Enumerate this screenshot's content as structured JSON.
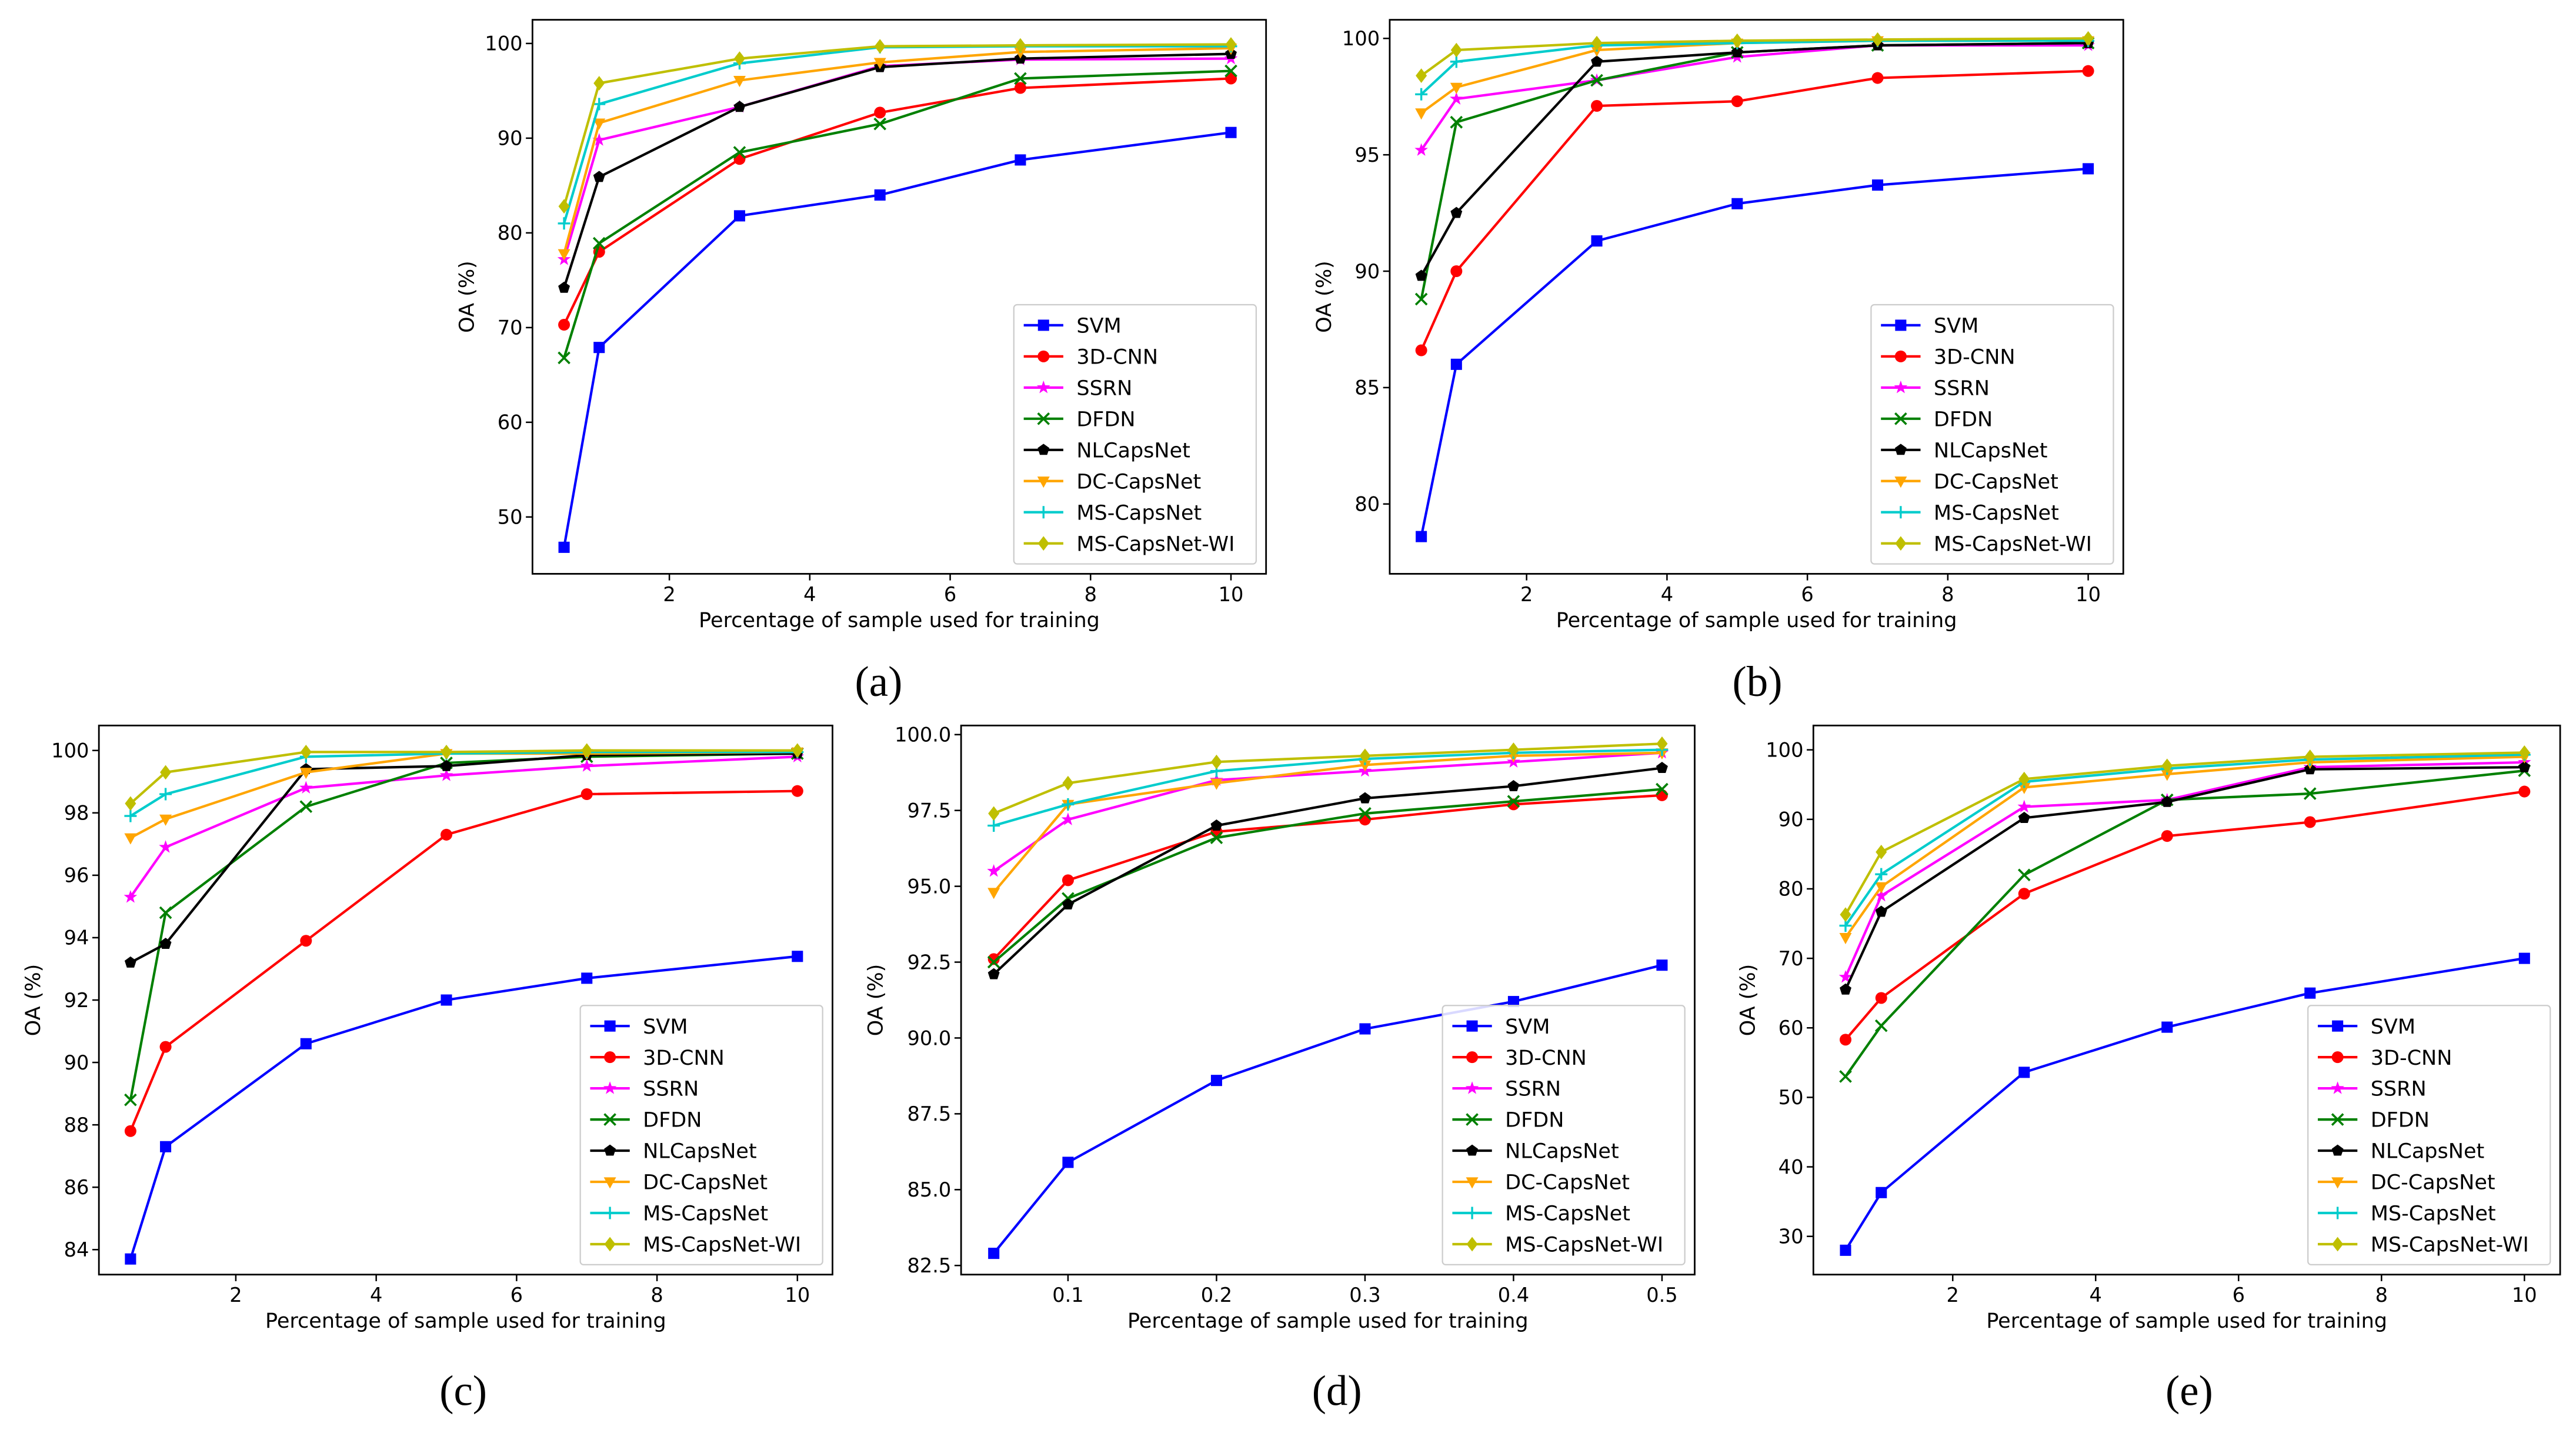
{
  "figure": {
    "series_names": [
      "SVM",
      "3D-CNN",
      "SSRN",
      "DFDN",
      "NLCapsNet",
      "DC-CapsNet",
      "MS-CapsNet",
      "MS-CapsNet-WI"
    ],
    "colors": [
      "#0000ff",
      "#ff0000",
      "#ff00ff",
      "#008000",
      "#000000",
      "#ffa500",
      "#00cccc",
      "#bfbf00"
    ],
    "markers": [
      "square",
      "circle",
      "star",
      "x",
      "pentagon",
      "triangle-down",
      "plus",
      "diamond"
    ]
  },
  "chart_data": [
    {
      "type": "line",
      "panel_label": "(a)",
      "xlabel": "Percentage of sample used for training",
      "ylabel": "OA (%)",
      "xlim": [
        0.05,
        10.5
      ],
      "ylim": [
        44,
        102.5
      ],
      "xticks": [
        2,
        4,
        6,
        8,
        10
      ],
      "yticks": [
        50,
        60,
        70,
        80,
        90,
        100
      ],
      "xtick_labels": [
        "2",
        "4",
        "6",
        "8",
        "10"
      ],
      "ytick_labels": [
        "50",
        "60",
        "70",
        "80",
        "90",
        "100"
      ],
      "legend": "lower-right",
      "x": [
        0.5,
        1,
        3,
        5,
        7,
        10
      ],
      "series": [
        {
          "name": "SVM",
          "values": [
            46.8,
            67.9,
            81.8,
            84.0,
            87.7,
            90.6
          ]
        },
        {
          "name": "3D-CNN",
          "values": [
            70.3,
            78.0,
            87.8,
            92.7,
            95.3,
            96.3
          ]
        },
        {
          "name": "SSRN",
          "values": [
            77.2,
            89.8,
            93.3,
            97.6,
            98.3,
            98.4
          ]
        },
        {
          "name": "DFDN",
          "values": [
            66.8,
            78.9,
            88.5,
            91.5,
            96.3,
            97.1
          ]
        },
        {
          "name": "NLCapsNet",
          "values": [
            74.2,
            85.9,
            93.3,
            97.5,
            98.4,
            98.9
          ]
        },
        {
          "name": "DC-CapsNet",
          "values": [
            77.8,
            91.6,
            96.1,
            98.0,
            99.1,
            99.5
          ]
        },
        {
          "name": "MS-CapsNet",
          "values": [
            81.0,
            93.6,
            97.9,
            99.6,
            99.7,
            99.7
          ]
        },
        {
          "name": "MS-CapsNet-WI",
          "values": [
            82.8,
            95.8,
            98.4,
            99.7,
            99.8,
            99.9
          ]
        }
      ]
    },
    {
      "type": "line",
      "panel_label": "(b)",
      "xlabel": "Percentage of sample used for training",
      "ylabel": "OA (%)",
      "xlim": [
        0.05,
        10.5
      ],
      "ylim": [
        77,
        100.8
      ],
      "xticks": [
        2,
        4,
        6,
        8,
        10
      ],
      "yticks": [
        80,
        85,
        90,
        95,
        100
      ],
      "xtick_labels": [
        "2",
        "4",
        "6",
        "8",
        "10"
      ],
      "ytick_labels": [
        "80",
        "85",
        "90",
        "95",
        "100"
      ],
      "legend": "lower-right",
      "x": [
        0.5,
        1,
        3,
        5,
        7,
        10
      ],
      "series": [
        {
          "name": "SVM",
          "values": [
            78.6,
            86.0,
            91.3,
            92.9,
            93.7,
            94.4
          ]
        },
        {
          "name": "3D-CNN",
          "values": [
            86.6,
            90.0,
            97.1,
            97.3,
            98.3,
            98.6
          ]
        },
        {
          "name": "SSRN",
          "values": [
            95.2,
            97.4,
            98.2,
            99.2,
            99.7,
            99.7
          ]
        },
        {
          "name": "DFDN",
          "values": [
            88.8,
            96.4,
            98.2,
            99.4,
            99.7,
            99.8
          ]
        },
        {
          "name": "NLCapsNet",
          "values": [
            89.8,
            92.5,
            99.0,
            99.4,
            99.7,
            99.8
          ]
        },
        {
          "name": "DC-CapsNet",
          "values": [
            96.8,
            97.9,
            99.5,
            99.8,
            99.9,
            99.9
          ]
        },
        {
          "name": "MS-CapsNet",
          "values": [
            97.6,
            99.0,
            99.7,
            99.8,
            99.9,
            99.9
          ]
        },
        {
          "name": "MS-CapsNet-WI",
          "values": [
            98.4,
            99.5,
            99.8,
            99.9,
            99.95,
            100.0
          ]
        }
      ]
    },
    {
      "type": "line",
      "panel_label": "(c)",
      "xlabel": "Percentage of sample used for training",
      "ylabel": "OA (%)",
      "xlim": [
        0.05,
        10.5
      ],
      "ylim": [
        83.2,
        100.8
      ],
      "xticks": [
        2,
        4,
        6,
        8,
        10
      ],
      "yticks": [
        84,
        86,
        88,
        90,
        92,
        94,
        96,
        98,
        100
      ],
      "xtick_labels": [
        "2",
        "4",
        "6",
        "8",
        "10"
      ],
      "ytick_labels": [
        "84",
        "86",
        "88",
        "90",
        "92",
        "94",
        "96",
        "98",
        "100"
      ],
      "legend": "lower-right",
      "x": [
        0.5,
        1,
        3,
        5,
        7,
        10
      ],
      "series": [
        {
          "name": "SVM",
          "values": [
            83.7,
            87.3,
            90.6,
            92.0,
            92.7,
            93.4
          ]
        },
        {
          "name": "3D-CNN",
          "values": [
            87.8,
            90.5,
            93.9,
            97.3,
            98.6,
            98.7
          ]
        },
        {
          "name": "SSRN",
          "values": [
            95.3,
            96.9,
            98.8,
            99.2,
            99.5,
            99.8
          ]
        },
        {
          "name": "DFDN",
          "values": [
            88.8,
            94.8,
            98.2,
            99.6,
            99.8,
            99.9
          ]
        },
        {
          "name": "NLCapsNet",
          "values": [
            93.2,
            93.8,
            99.4,
            99.5,
            99.85,
            99.9
          ]
        },
        {
          "name": "DC-CapsNet",
          "values": [
            97.2,
            97.8,
            99.3,
            99.9,
            99.9,
            99.95
          ]
        },
        {
          "name": "MS-CapsNet",
          "values": [
            97.9,
            98.6,
            99.8,
            99.9,
            99.95,
            99.95
          ]
        },
        {
          "name": "MS-CapsNet-WI",
          "values": [
            98.3,
            99.3,
            99.95,
            99.95,
            100.0,
            100.0
          ]
        }
      ]
    },
    {
      "type": "line",
      "panel_label": "(d)",
      "xlabel": "Percentage of sample used for training",
      "ylabel": "OA (%)",
      "xlim": [
        0.028,
        0.522
      ],
      "ylim": [
        82.2,
        100.3
      ],
      "xticks": [
        0.1,
        0.2,
        0.3,
        0.4,
        0.5
      ],
      "yticks": [
        82.5,
        85.0,
        87.5,
        90.0,
        92.5,
        95.0,
        97.5,
        100.0
      ],
      "xtick_labels": [
        "0.1",
        "0.2",
        "0.3",
        "0.4",
        "0.5"
      ],
      "ytick_labels": [
        "82.5",
        "85.0",
        "87.5",
        "90.0",
        "92.5",
        "95.0",
        "97.5",
        "100.0"
      ],
      "legend": "lower-right",
      "x": [
        0.05,
        0.1,
        0.2,
        0.3,
        0.4,
        0.5
      ],
      "series": [
        {
          "name": "SVM",
          "values": [
            82.9,
            85.9,
            88.6,
            90.3,
            91.2,
            92.4
          ]
        },
        {
          "name": "3D-CNN",
          "values": [
            92.6,
            95.2,
            96.8,
            97.2,
            97.7,
            98.0
          ]
        },
        {
          "name": "SSRN",
          "values": [
            95.5,
            97.2,
            98.5,
            98.8,
            99.1,
            99.4
          ]
        },
        {
          "name": "DFDN",
          "values": [
            92.5,
            94.6,
            96.6,
            97.4,
            97.8,
            98.2
          ]
        },
        {
          "name": "NLCapsNet",
          "values": [
            92.1,
            94.4,
            97.0,
            97.9,
            98.3,
            98.9
          ]
        },
        {
          "name": "DC-CapsNet",
          "values": [
            94.8,
            97.7,
            98.4,
            99.0,
            99.3,
            99.4
          ]
        },
        {
          "name": "MS-CapsNet",
          "values": [
            97.0,
            97.7,
            98.8,
            99.2,
            99.4,
            99.5
          ]
        },
        {
          "name": "MS-CapsNet-WI",
          "values": [
            97.4,
            98.4,
            99.1,
            99.3,
            99.5,
            99.7
          ]
        }
      ]
    },
    {
      "type": "line",
      "panel_label": "(e)",
      "xlabel": "Percentage of sample used for training",
      "ylabel": "OA (%)",
      "xlim": [
        0.05,
        10.5
      ],
      "ylim": [
        24.5,
        103.5
      ],
      "xticks": [
        2,
        4,
        6,
        8,
        10
      ],
      "yticks": [
        30,
        40,
        50,
        60,
        70,
        80,
        90,
        100
      ],
      "xtick_labels": [
        "2",
        "4",
        "6",
        "8",
        "10"
      ],
      "ytick_labels": [
        "30",
        "40",
        "50",
        "60",
        "70",
        "80",
        "90",
        "100"
      ],
      "legend": "lower-right",
      "x": [
        0.5,
        1,
        3,
        5,
        7,
        10
      ],
      "series": [
        {
          "name": "SVM",
          "values": [
            28.0,
            36.3,
            53.6,
            60.1,
            65.0,
            70.0
          ]
        },
        {
          "name": "3D-CNN",
          "values": [
            58.3,
            64.3,
            79.3,
            87.6,
            89.6,
            94.0
          ]
        },
        {
          "name": "SSRN",
          "values": [
            67.3,
            79.0,
            91.8,
            92.8,
            97.5,
            98.2
          ]
        },
        {
          "name": "DFDN",
          "values": [
            53.0,
            60.3,
            82.0,
            92.8,
            93.7,
            97.0
          ]
        },
        {
          "name": "NLCapsNet",
          "values": [
            65.5,
            76.7,
            90.2,
            92.5,
            97.2,
            97.5
          ]
        },
        {
          "name": "DC-CapsNet",
          "values": [
            73.0,
            80.3,
            94.6,
            96.5,
            98.2,
            99.0
          ]
        },
        {
          "name": "MS-CapsNet",
          "values": [
            74.7,
            82.1,
            95.4,
            97.3,
            98.6,
            99.3
          ]
        },
        {
          "name": "MS-CapsNet-WI",
          "values": [
            76.3,
            85.3,
            95.8,
            97.7,
            99.0,
            99.6
          ]
        }
      ]
    }
  ]
}
